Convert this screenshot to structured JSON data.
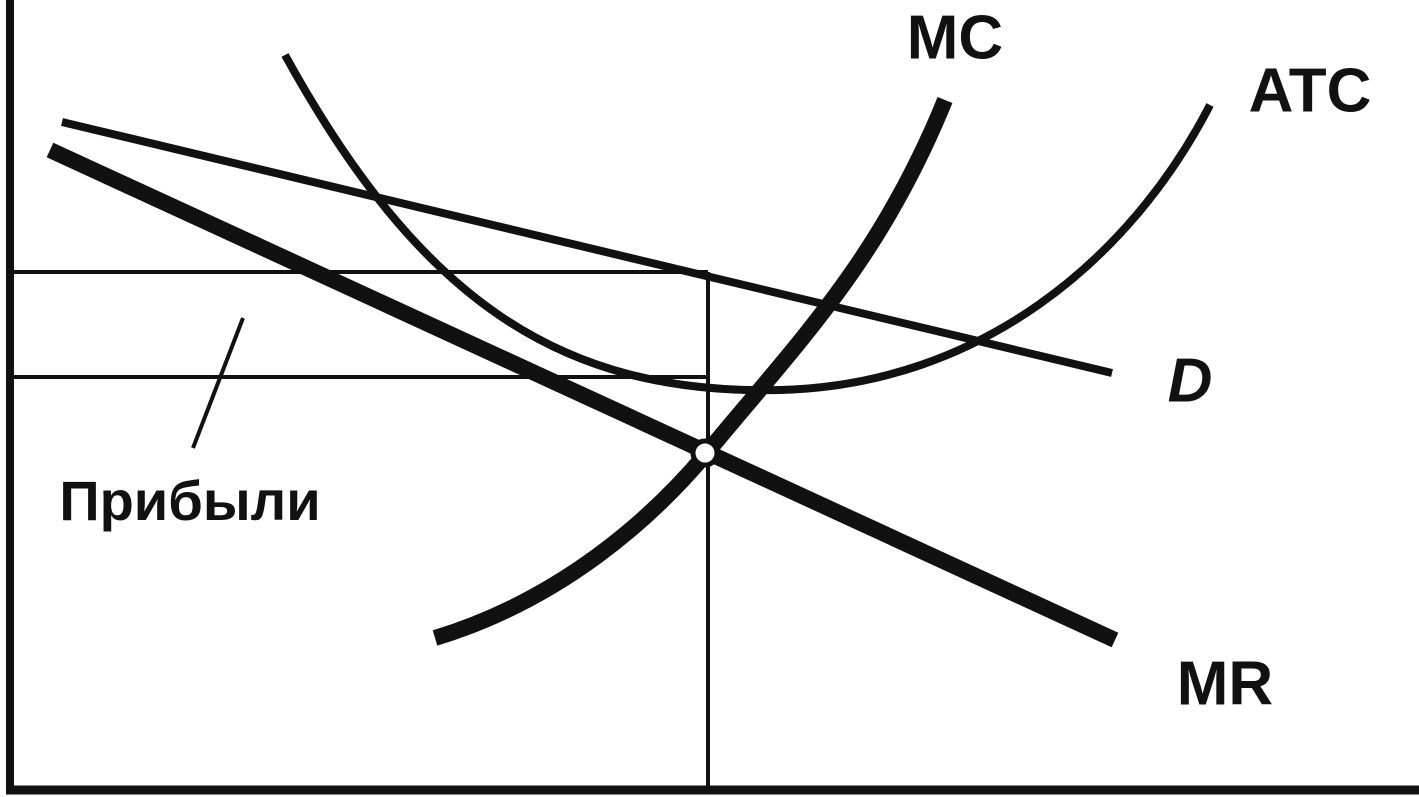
{
  "labels": {
    "mc": "MC",
    "atc": "ATC",
    "d": "D",
    "mr": "MR",
    "profit": "Прибыли"
  }
}
